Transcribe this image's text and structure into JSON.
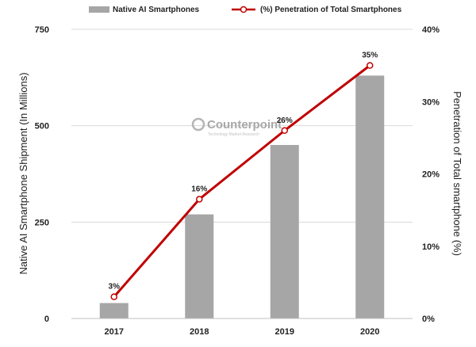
{
  "chart_data": {
    "type": "bar",
    "categories": [
      "2017",
      "2018",
      "2019",
      "2020"
    ],
    "series": [
      {
        "name": "Native AI Smartphones",
        "type": "bar",
        "axis": "left",
        "color": "#a6a6a6",
        "values": [
          40,
          270,
          450,
          630
        ]
      },
      {
        "name": "(%) Penetration of Total Smartphones",
        "type": "line",
        "axis": "right",
        "color": "#c00000",
        "values": [
          3,
          16.5,
          26,
          35
        ],
        "labels": [
          "3%",
          "16%",
          "26%",
          "35%"
        ]
      }
    ],
    "ylabel": "Native AI Smartphone Shipment (In Millions)",
    "ylim": [
      0,
      750
    ],
    "yticks": [
      "0",
      "250",
      "500",
      "750"
    ],
    "y2label": "Penetration of Total smartphone (%)",
    "y2lim": [
      0,
      40
    ],
    "y2ticks": [
      "0%",
      "10%",
      "20%",
      "30%",
      "40%"
    ],
    "grid": true,
    "legend_position": "top",
    "watermark": {
      "title": "Counterpoint",
      "subtitle": "Technology Market Research"
    }
  }
}
